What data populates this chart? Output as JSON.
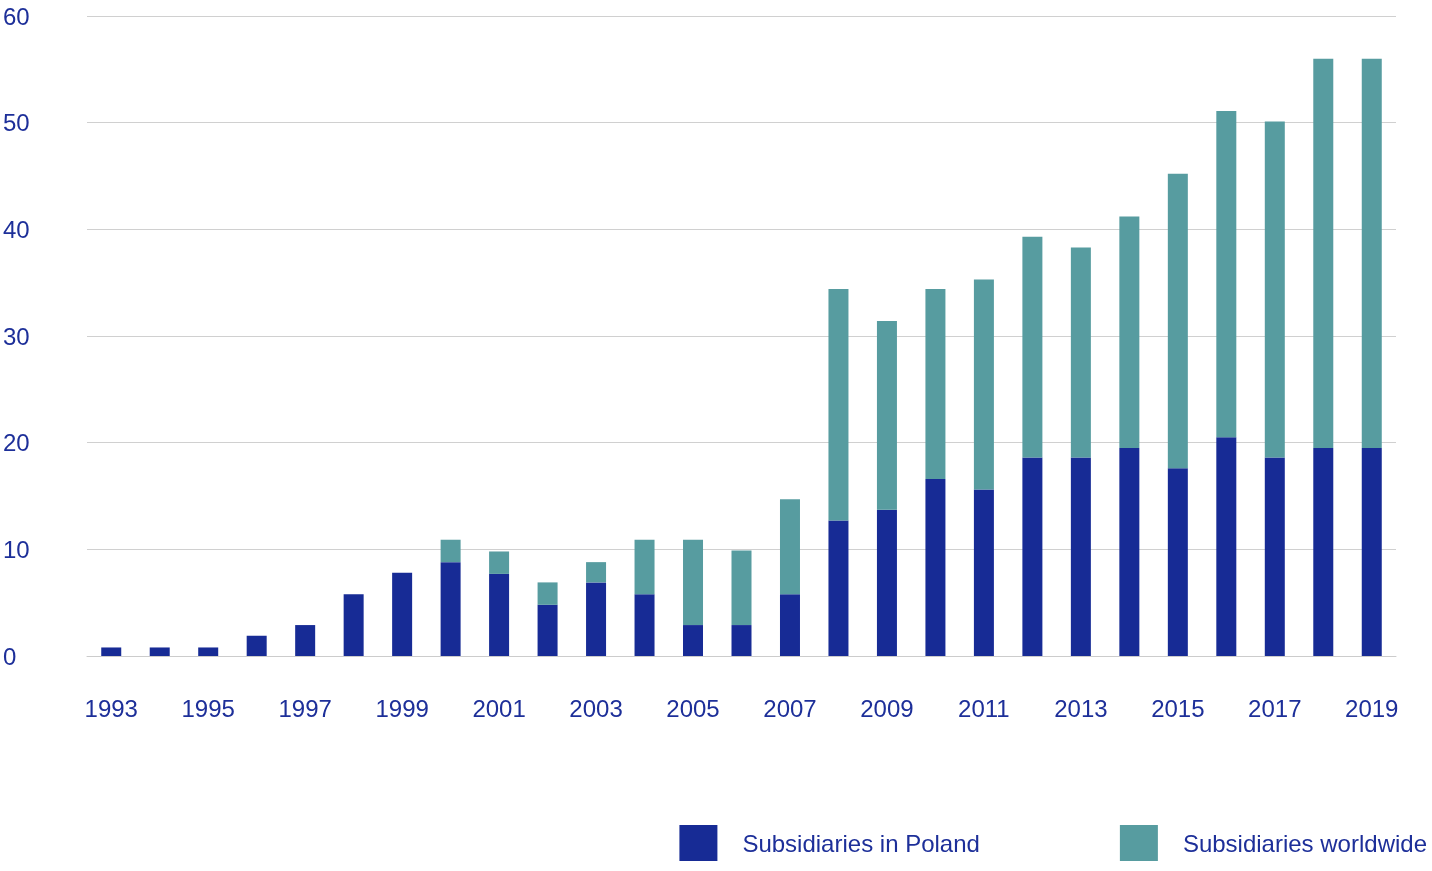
{
  "chart_data": {
    "type": "bar",
    "stacked": true,
    "categories": [
      "1993",
      null,
      "1995",
      null,
      "1997",
      null,
      "1999",
      null,
      "2001",
      null,
      "2003",
      null,
      "2005",
      null,
      "2007",
      null,
      "2009",
      null,
      "2011",
      null,
      "2013",
      null,
      "2015",
      null,
      "2017",
      null,
      "2019"
    ],
    "series": [
      {
        "name": "Subsidiaries in Poland",
        "color": "#172b95",
        "values": [
          0.8,
          0.8,
          0.8,
          1.9,
          2.9,
          5.8,
          7.8,
          8.8,
          7.7,
          4.8,
          6.9,
          5.8,
          2.9,
          2.9,
          5.8,
          12.7,
          13.7,
          16.6,
          15.6,
          18.6,
          18.6,
          19.5,
          17.6,
          20.5,
          18.6,
          19.5,
          19.5
        ]
      },
      {
        "name": "Subsidiaries worldwide",
        "color": "#579ca0",
        "values": [
          0,
          0,
          0,
          0,
          0,
          0,
          0,
          2.1,
          2.1,
          2.1,
          1.9,
          5.1,
          8,
          7,
          8.9,
          21.7,
          17.7,
          17.8,
          19.7,
          20.7,
          19.7,
          21.7,
          27.6,
          30.6,
          31.5,
          36.5,
          36.5
        ]
      }
    ],
    "ylim": [
      0,
      60
    ],
    "yticks": [
      0,
      10,
      20,
      30,
      40,
      50,
      60
    ],
    "grid": "y",
    "legend": "bottom right"
  }
}
